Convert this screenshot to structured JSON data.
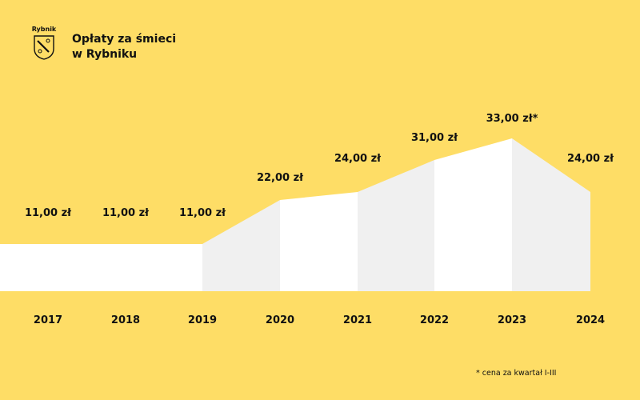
{
  "header": {
    "logo_text": "Rybnik",
    "title_line1": "Opłaty za śmieci",
    "title_line2": "w Rybniku"
  },
  "colors": {
    "background": "#fedd66",
    "bar_white": "#ffffff",
    "bar_grey": "#f0f0f0",
    "text": "#111111"
  },
  "chart_data": {
    "type": "area",
    "title": "Opłaty za śmieci w Rybniku",
    "xlabel": "",
    "ylabel": "",
    "categories": [
      "2017",
      "2018",
      "2019",
      "2020",
      "2021",
      "2022",
      "2023",
      "2024"
    ],
    "values": [
      11,
      11,
      11,
      22,
      24,
      31,
      33,
      24
    ],
    "value_labels": [
      "11,00 zł",
      "11,00 zł",
      "11,00 zł",
      "22,00 zł",
      "24,00 zł",
      "31,00 zł",
      "33,00 zł*",
      "24,00 zł"
    ],
    "ylim": [
      0,
      33
    ],
    "grid": false,
    "legend": "none",
    "annotations": [
      "* cena za kwartał I-III"
    ]
  },
  "footnote": "* cena za kwartał I-III"
}
